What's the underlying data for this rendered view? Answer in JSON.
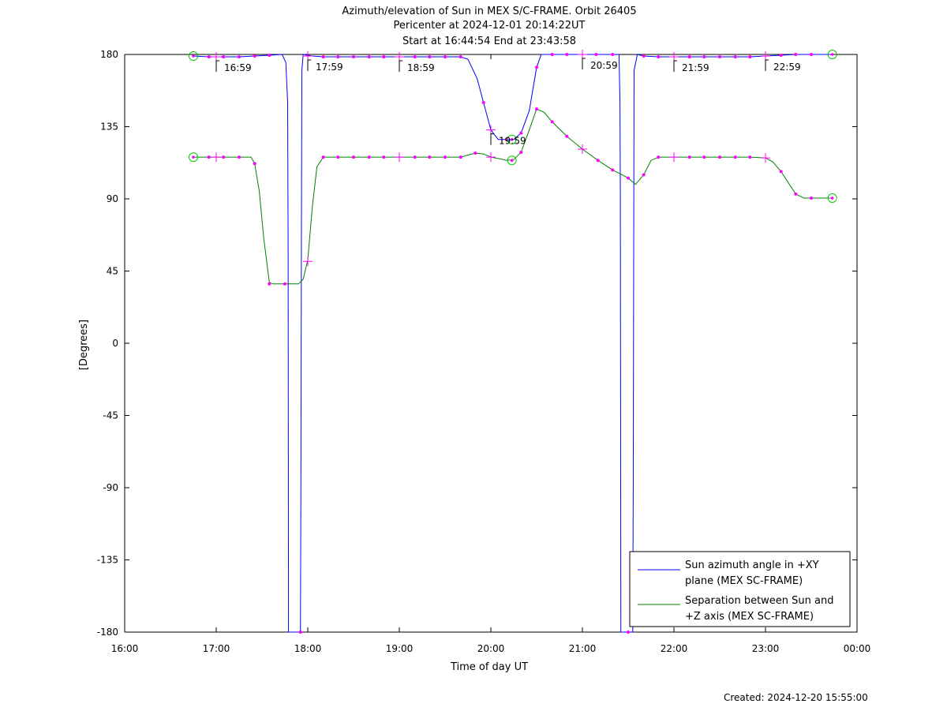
{
  "footer": {
    "created": "Created: 2024-12-20 15:55:00"
  },
  "chart_data": {
    "type": "line",
    "title": [
      "Azimuth/elevation of Sun in MEX S/C-FRAME.  Orbit 26405",
      "Pericenter at 2024-12-01 20:14:22UT",
      "Start at 16:44:54 End at 23:43:58"
    ],
    "xlabel": "Time of day UT",
    "ylabel": "[Degrees]",
    "xlim": [
      16.0,
      24.0
    ],
    "ylim": [
      -180,
      180
    ],
    "x_ticks": [
      16,
      17,
      18,
      19,
      20,
      21,
      22,
      23,
      24
    ],
    "x_tick_labels": [
      "16:00",
      "17:00",
      "18:00",
      "19:00",
      "20:00",
      "21:00",
      "22:00",
      "23:00",
      "00:00"
    ],
    "y_ticks": [
      180,
      135,
      90,
      45,
      0,
      -45,
      -90,
      -135,
      -180
    ],
    "y_tick_labels": [
      "180",
      "135",
      "90",
      "45",
      "0",
      "-45",
      "-90",
      "-135",
      "-180"
    ],
    "grid": false,
    "legend_position": "bottom-right",
    "colors": {
      "azimuth": "#0000ff",
      "separation": "#008000",
      "marker": "#ff00ff",
      "endpoint": "#00cc00"
    },
    "series": [
      {
        "name": "Sun azimuth angle in +XY plane (MEX SC-FRAME)",
        "legend_lines": [
          "Sun azimuth angle in +XY",
          "plane (MEX SC-FRAME)"
        ],
        "color": "#0000ff",
        "points": [
          [
            16.75,
            179
          ],
          [
            16.92,
            178.5
          ],
          [
            17.08,
            178.5
          ],
          [
            17.25,
            178.5
          ],
          [
            17.42,
            179
          ],
          [
            17.58,
            179.5
          ],
          [
            17.72,
            180
          ],
          [
            17.76,
            175
          ],
          [
            17.78,
            150
          ],
          [
            17.785,
            60
          ],
          [
            17.79,
            -180
          ],
          [
            17.92,
            -180
          ],
          [
            17.925,
            -90
          ],
          [
            17.93,
            60
          ],
          [
            17.935,
            170
          ],
          [
            17.95,
            180
          ],
          [
            18.05,
            179
          ],
          [
            18.17,
            178.5
          ],
          [
            18.33,
            178.5
          ],
          [
            18.5,
            178.5
          ],
          [
            18.67,
            178.5
          ],
          [
            18.83,
            178.5
          ],
          [
            19.0,
            178.5
          ],
          [
            19.17,
            178.5
          ],
          [
            19.33,
            178.5
          ],
          [
            19.5,
            178.5
          ],
          [
            19.67,
            178.5
          ],
          [
            19.75,
            177
          ],
          [
            19.85,
            165
          ],
          [
            19.92,
            150
          ],
          [
            20.0,
            133
          ],
          [
            20.08,
            127
          ],
          [
            20.17,
            127
          ],
          [
            20.25,
            127
          ],
          [
            20.33,
            131
          ],
          [
            20.42,
            145
          ],
          [
            20.5,
            172
          ],
          [
            20.55,
            180
          ],
          [
            20.67,
            180
          ],
          [
            20.83,
            180
          ],
          [
            21.0,
            180
          ],
          [
            21.15,
            180
          ],
          [
            21.33,
            180
          ],
          [
            21.4,
            180
          ],
          [
            21.41,
            150
          ],
          [
            21.415,
            90
          ],
          [
            21.42,
            -180
          ],
          [
            21.55,
            -180
          ],
          [
            21.555,
            -90
          ],
          [
            21.56,
            60
          ],
          [
            21.565,
            170
          ],
          [
            21.6,
            180
          ],
          [
            21.67,
            179
          ],
          [
            21.83,
            178.5
          ],
          [
            22.0,
            178.5
          ],
          [
            22.17,
            178.5
          ],
          [
            22.33,
            178.5
          ],
          [
            22.5,
            178.5
          ],
          [
            22.67,
            178.5
          ],
          [
            22.83,
            178.5
          ],
          [
            23.0,
            179
          ],
          [
            23.17,
            179.5
          ],
          [
            23.33,
            180
          ],
          [
            23.5,
            180
          ],
          [
            23.73,
            180
          ]
        ]
      },
      {
        "name": "Separation between Sun and +Z axis (MEX SC-FRAME)",
        "legend_lines": [
          "Separation between Sun and",
          "+Z axis (MEX SC-FRAME)"
        ],
        "color": "#008000",
        "points": [
          [
            16.75,
            116
          ],
          [
            16.92,
            116
          ],
          [
            17.08,
            116
          ],
          [
            17.25,
            116
          ],
          [
            17.38,
            116
          ],
          [
            17.42,
            112
          ],
          [
            17.47,
            95
          ],
          [
            17.52,
            65
          ],
          [
            17.58,
            38
          ],
          [
            17.62,
            37
          ],
          [
            17.75,
            37
          ],
          [
            17.85,
            37
          ],
          [
            17.9,
            37
          ],
          [
            17.95,
            40
          ],
          [
            18.0,
            52
          ],
          [
            18.05,
            85
          ],
          [
            18.1,
            110
          ],
          [
            18.17,
            116
          ],
          [
            18.33,
            116
          ],
          [
            18.5,
            116
          ],
          [
            18.67,
            116
          ],
          [
            18.83,
            116
          ],
          [
            19.0,
            116
          ],
          [
            19.17,
            116
          ],
          [
            19.33,
            116
          ],
          [
            19.5,
            116
          ],
          [
            19.67,
            116
          ],
          [
            19.83,
            118.5
          ],
          [
            19.92,
            118
          ],
          [
            20.0,
            116
          ],
          [
            20.1,
            115
          ],
          [
            20.17,
            114
          ],
          [
            20.25,
            114.5
          ],
          [
            20.33,
            119
          ],
          [
            20.42,
            133
          ],
          [
            20.5,
            146
          ],
          [
            20.58,
            144
          ],
          [
            20.67,
            138
          ],
          [
            20.83,
            129
          ],
          [
            21.0,
            121
          ],
          [
            21.17,
            114
          ],
          [
            21.33,
            108
          ],
          [
            21.5,
            103
          ],
          [
            21.58,
            99
          ],
          [
            21.67,
            105
          ],
          [
            21.75,
            114
          ],
          [
            21.83,
            116
          ],
          [
            22.0,
            116
          ],
          [
            22.17,
            116
          ],
          [
            22.33,
            116
          ],
          [
            22.5,
            116
          ],
          [
            22.67,
            116
          ],
          [
            22.83,
            116
          ],
          [
            23.0,
            115.5
          ],
          [
            23.08,
            113
          ],
          [
            23.17,
            107
          ],
          [
            23.25,
            100
          ],
          [
            23.33,
            93
          ],
          [
            23.42,
            90.5
          ],
          [
            23.5,
            90.5
          ],
          [
            23.73,
            90.5
          ]
        ]
      }
    ],
    "annotations": [
      {
        "time": 17.0,
        "y": 178.5,
        "label": "16:59"
      },
      {
        "time": 18.0,
        "y": 179,
        "label": "17:59"
      },
      {
        "time": 19.0,
        "y": 178.5,
        "label": "18:59"
      },
      {
        "time": 20.0,
        "y": 133,
        "label": "19:59"
      },
      {
        "time": 21.0,
        "y": 180,
        "label": "20:59"
      },
      {
        "time": 22.0,
        "y": 178.5,
        "label": "21:59"
      },
      {
        "time": 23.0,
        "y": 179,
        "label": "22:59"
      }
    ],
    "dot_markers_azimuth": [
      [
        16.92,
        178.5
      ],
      [
        17.08,
        178.5
      ],
      [
        17.25,
        178.5
      ],
      [
        17.42,
        179
      ],
      [
        17.58,
        179.5
      ],
      [
        17.92,
        -180
      ],
      [
        18.17,
        178.5
      ],
      [
        18.33,
        178.5
      ],
      [
        18.5,
        178.5
      ],
      [
        18.67,
        178.5
      ],
      [
        18.83,
        178.5
      ],
      [
        19.17,
        178.5
      ],
      [
        19.33,
        178.5
      ],
      [
        19.5,
        178.5
      ],
      [
        19.67,
        178.5
      ],
      [
        19.92,
        150
      ],
      [
        20.17,
        127
      ],
      [
        20.33,
        131
      ],
      [
        20.5,
        172
      ],
      [
        20.67,
        180
      ],
      [
        20.83,
        180
      ],
      [
        21.15,
        180
      ],
      [
        21.33,
        180
      ],
      [
        21.5,
        -180
      ],
      [
        21.67,
        179
      ],
      [
        21.83,
        178.5
      ],
      [
        22.17,
        178.5
      ],
      [
        22.33,
        178.5
      ],
      [
        22.5,
        178.5
      ],
      [
        22.67,
        178.5
      ],
      [
        22.83,
        178.5
      ],
      [
        23.17,
        179.5
      ],
      [
        23.33,
        180
      ],
      [
        23.5,
        180
      ]
    ],
    "cross_markers_azimuth": [
      [
        17.0,
        178.5
      ],
      [
        18.0,
        179
      ],
      [
        19.0,
        178.5
      ],
      [
        20.0,
        133
      ],
      [
        21.0,
        180
      ],
      [
        22.0,
        178.5
      ],
      [
        23.0,
        179
      ]
    ],
    "dot_markers_separation": [
      [
        16.92,
        116
      ],
      [
        17.08,
        116
      ],
      [
        17.25,
        116
      ],
      [
        17.42,
        112
      ],
      [
        17.58,
        37
      ],
      [
        17.75,
        37
      ],
      [
        18.17,
        116
      ],
      [
        18.33,
        116
      ],
      [
        18.5,
        116
      ],
      [
        18.67,
        116
      ],
      [
        18.83,
        116
      ],
      [
        19.17,
        116
      ],
      [
        19.33,
        116
      ],
      [
        19.5,
        116
      ],
      [
        19.67,
        116
      ],
      [
        19.83,
        118.5
      ],
      [
        20.33,
        119
      ],
      [
        20.5,
        146
      ],
      [
        20.67,
        138
      ],
      [
        20.83,
        129
      ],
      [
        21.17,
        114
      ],
      [
        21.33,
        108
      ],
      [
        21.5,
        103
      ],
      [
        21.67,
        105
      ],
      [
        21.83,
        116
      ],
      [
        22.17,
        116
      ],
      [
        22.33,
        116
      ],
      [
        22.5,
        116
      ],
      [
        22.67,
        116
      ],
      [
        22.83,
        116
      ],
      [
        23.17,
        107
      ],
      [
        23.33,
        93
      ],
      [
        23.5,
        90.5
      ]
    ],
    "cross_markers_separation": [
      [
        17.0,
        116
      ],
      [
        18.0,
        51
      ],
      [
        19.0,
        116
      ],
      [
        20.0,
        116
      ],
      [
        21.0,
        121
      ],
      [
        22.0,
        116
      ],
      [
        23.0,
        115.5
      ]
    ],
    "circle_markers_azimuth": [
      [
        16.75,
        179
      ],
      [
        20.23,
        127
      ],
      [
        23.73,
        180
      ]
    ],
    "circle_markers_separation": [
      [
        16.75,
        116
      ],
      [
        20.23,
        114
      ],
      [
        23.73,
        90.5
      ]
    ]
  }
}
